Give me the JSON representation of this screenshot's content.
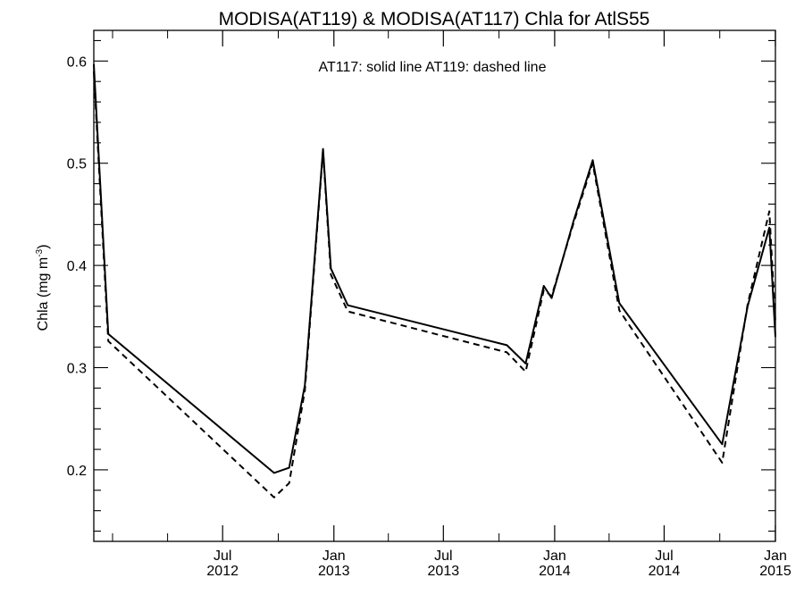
{
  "chart_data": {
    "type": "line",
    "title": "MODISA(AT119) & MODISA(AT117)  Chla for AtlS55",
    "annotation": "AT117: solid line   AT119: dashed line",
    "ylabel": "Chla (mg m",
    "ylabel_superscript": "-3",
    "ylabel_close": ")",
    "ylim": [
      0.13,
      0.63
    ],
    "xlim": [
      "2011-12-01",
      "2015-01-01"
    ],
    "x_ticks": [
      {
        "date": "2012-07-01",
        "line1": "Jul",
        "line2": "2012"
      },
      {
        "date": "2013-01-01",
        "line1": "Jan",
        "line2": "2013"
      },
      {
        "date": "2013-07-01",
        "line1": "Jul",
        "line2": "2013"
      },
      {
        "date": "2014-01-01",
        "line1": "Jan",
        "line2": "2014"
      },
      {
        "date": "2014-07-01",
        "line1": "Jul",
        "line2": "2014"
      },
      {
        "date": "2015-01-01",
        "line1": "Jan",
        "line2": "2015"
      }
    ],
    "x_minor_ticks": [
      "2012-01-01",
      "2012-04-01",
      "2012-10-01",
      "2013-04-01",
      "2013-10-01",
      "2014-04-01",
      "2014-10-01"
    ],
    "y_ticks": [
      0.2,
      0.3,
      0.4,
      0.5,
      0.6
    ],
    "series": [
      {
        "style": "solid",
        "points": [
          [
            "2011-12-01",
            0.597
          ],
          [
            "2011-12-25",
            0.333
          ],
          [
            "2012-09-24",
            0.197
          ],
          [
            "2012-10-19",
            0.202
          ],
          [
            "2012-11-14",
            0.283
          ],
          [
            "2012-12-14",
            0.514
          ],
          [
            "2012-12-27",
            0.397
          ],
          [
            "2013-01-24",
            0.361
          ],
          [
            "2013-10-14",
            0.322
          ],
          [
            "2013-11-14",
            0.304
          ],
          [
            "2013-12-14",
            0.38
          ],
          [
            "2013-12-27",
            0.368
          ],
          [
            "2014-02-01",
            0.443
          ],
          [
            "2014-03-05",
            0.503
          ],
          [
            "2014-04-18",
            0.363
          ],
          [
            "2014-10-05",
            0.225
          ],
          [
            "2014-11-16",
            0.36
          ],
          [
            "2014-12-22",
            0.437
          ],
          [
            "2015-01-01",
            0.33
          ]
        ]
      },
      {
        "style": "dashed",
        "points": [
          [
            "2011-12-01",
            0.59
          ],
          [
            "2011-12-25",
            0.326
          ],
          [
            "2012-09-24",
            0.173
          ],
          [
            "2012-10-19",
            0.187
          ],
          [
            "2012-11-14",
            0.278
          ],
          [
            "2012-12-14",
            0.512
          ],
          [
            "2012-12-27",
            0.391
          ],
          [
            "2013-01-24",
            0.355
          ],
          [
            "2013-10-14",
            0.315
          ],
          [
            "2013-11-14",
            0.296
          ],
          [
            "2013-12-14",
            0.376
          ],
          [
            "2013-12-27",
            0.37
          ],
          [
            "2014-02-01",
            0.441
          ],
          [
            "2014-03-05",
            0.5
          ],
          [
            "2014-04-18",
            0.356
          ],
          [
            "2014-10-05",
            0.207
          ],
          [
            "2014-11-16",
            0.362
          ],
          [
            "2014-12-22",
            0.453
          ],
          [
            "2015-01-01",
            0.343
          ]
        ]
      }
    ]
  }
}
